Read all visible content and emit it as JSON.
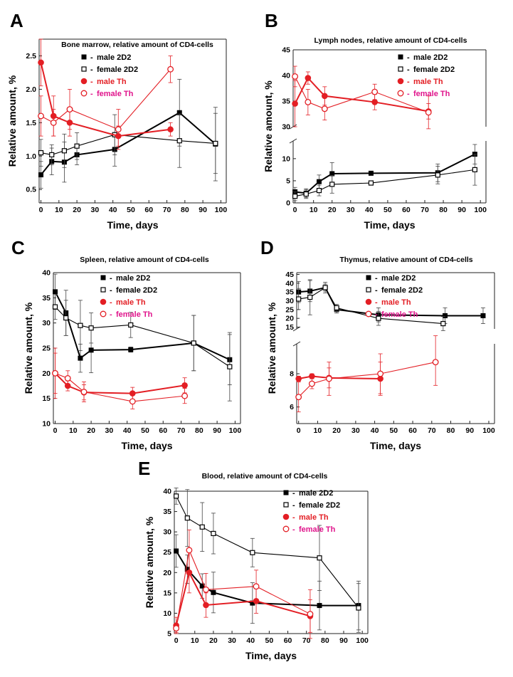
{
  "figure": {
    "colors": {
      "male_2D2": "#000000",
      "female_2D2": "#000000",
      "male_Th": "#e31e24",
      "female_Th": "#e31e24",
      "female_Th_text": "#e0158c",
      "axis": "#222222"
    }
  },
  "chart_data": [
    {
      "panel": "A",
      "type": "line",
      "title": "Bone marrow, relative amount of CD4-cells",
      "xlabel": "Time, days",
      "ylabel": "Relative amount, %",
      "xlim": [
        -1,
        103
      ],
      "ylim": [
        0.3,
        2.75
      ],
      "xticks": [
        0,
        10,
        20,
        30,
        40,
        50,
        60,
        70,
        80,
        90,
        100
      ],
      "yticks": [
        0.5,
        1.0,
        1.5,
        2.0,
        2.5
      ],
      "ytick_labels": [
        "0.5",
        "1.0",
        "1.5",
        "2.0",
        "2.5"
      ],
      "legend_position": "top-right",
      "series": [
        {
          "name": "male 2D2",
          "marker": "filled-square",
          "color": "#000000",
          "points": [
            [
              0,
              0.72,
              0.2
            ],
            [
              6,
              0.92,
              0.2
            ],
            [
              13,
              0.91,
              0.3
            ],
            [
              20,
              1.02,
              0.15
            ],
            [
              41,
              1.1,
              0.25
            ],
            [
              77,
              1.65,
              0.5
            ],
            [
              97,
              1.18,
              0.55
            ]
          ]
        },
        {
          "name": "female 2D2",
          "marker": "open-square",
          "color": "#000000",
          "points": [
            [
              0,
              1.05,
              0.2
            ],
            [
              6,
              1.02,
              0.15
            ],
            [
              13,
              1.08,
              0.25
            ],
            [
              20,
              1.15,
              0.2
            ],
            [
              41,
              1.32,
              0.3
            ],
            [
              77,
              1.23,
              0.4
            ],
            [
              97,
              1.19,
              0.45
            ]
          ]
        },
        {
          "name": "male Th",
          "marker": "filled-circle",
          "color": "#e31e24",
          "points": [
            [
              0,
              2.4,
              0.35
            ],
            [
              7,
              1.6,
              0.3
            ],
            [
              16,
              1.5,
              0.2
            ],
            [
              43,
              1.3,
              0.15
            ],
            [
              72,
              1.4,
              0.1
            ]
          ]
        },
        {
          "name": "female Th",
          "marker": "open-circle",
          "color": "#e31e24",
          "points": [
            [
              0,
              1.6,
              0.3
            ],
            [
              7,
              1.5,
              0.2
            ],
            [
              16,
              1.7,
              0.3
            ],
            [
              43,
              1.4,
              0.3
            ],
            [
              72,
              2.3,
              0.2
            ]
          ]
        }
      ]
    },
    {
      "panel": "B",
      "type": "line",
      "title": "Lymph nodes, relative amount of CD4-cells",
      "xlabel": "Time, days",
      "ylabel": "Relative amount, %",
      "xlim": [
        -1,
        103
      ],
      "broken_axis": {
        "lower": [
          0,
          14
        ],
        "upper": [
          30,
          45
        ]
      },
      "xticks": [
        0,
        10,
        20,
        30,
        40,
        50,
        60,
        70,
        80,
        90,
        100
      ],
      "yticks_lower": [
        0,
        5,
        10
      ],
      "yticks_upper": [
        30,
        35,
        40,
        45
      ],
      "legend_position": "top-right",
      "series": [
        {
          "name": "male 2D2",
          "marker": "filled-square",
          "color": "#000000",
          "points": [
            [
              0,
              2.5,
              1.0
            ],
            [
              6,
              2.2,
              1.0
            ],
            [
              13,
              4.8,
              1.5
            ],
            [
              20,
              6.6,
              2.5
            ],
            [
              41,
              6.7,
              0.4
            ],
            [
              77,
              6.8,
              2.0
            ],
            [
              97,
              11.0,
              2.2
            ]
          ]
        },
        {
          "name": "female 2D2",
          "marker": "open-square",
          "color": "#000000",
          "points": [
            [
              0,
              1.5,
              1.0
            ],
            [
              6,
              2.0,
              1.0
            ],
            [
              13,
              2.8,
              1.2
            ],
            [
              20,
              4.2,
              2.0
            ],
            [
              41,
              4.5,
              0.5
            ],
            [
              77,
              6.3,
              2.0
            ],
            [
              97,
              7.5,
              3.5
            ]
          ]
        },
        {
          "name": "male Th",
          "marker": "filled-circle",
          "color": "#e31e24",
          "points": [
            [
              0,
              34.5,
              4.5
            ],
            [
              7,
              39.5,
              1.2
            ],
            [
              16,
              36.0,
              1.8
            ],
            [
              43,
              34.8,
              1.5
            ],
            [
              72,
              33.0,
              1.5
            ]
          ]
        },
        {
          "name": "female Th",
          "marker": "open-circle",
          "color": "#e31e24",
          "points": [
            [
              0,
              39.8,
              2.0
            ],
            [
              7,
              34.8,
              2.5
            ],
            [
              16,
              33.5,
              2.2
            ],
            [
              43,
              36.8,
              1.5
            ],
            [
              72,
              32.8,
              3.2
            ]
          ]
        }
      ]
    },
    {
      "panel": "C",
      "type": "line",
      "title": "Spleen, relative amount of CD4-cells",
      "xlabel": "Time, days",
      "ylabel": "Relative amount, %",
      "xlim": [
        -1,
        103
      ],
      "ylim": [
        10,
        40
      ],
      "xticks": [
        0,
        10,
        20,
        30,
        40,
        50,
        60,
        70,
        80,
        90,
        100
      ],
      "yticks": [
        10,
        15,
        20,
        25,
        30,
        35,
        40
      ],
      "ytick_labels": [
        "10",
        "15",
        "20",
        "25",
        "30",
        "35",
        "40"
      ],
      "legend_position": "top-right",
      "series": [
        {
          "name": "male 2D2",
          "marker": "filled-square",
          "color": "#000000",
          "points": [
            [
              0,
              36.2,
              3.5
            ],
            [
              6,
              32.0,
              4.5
            ],
            [
              14,
              23.0,
              2.8
            ],
            [
              20,
              24.6,
              4.5
            ],
            [
              42,
              24.7,
              0.5
            ],
            [
              77,
              26.0,
              5.5
            ],
            [
              97,
              22.7,
              5.0
            ]
          ]
        },
        {
          "name": "female 2D2",
          "marker": "open-square",
          "color": "#000000",
          "points": [
            [
              0,
              33.2,
              2.5
            ],
            [
              6,
              31.0,
              3.5
            ],
            [
              14,
              29.5,
              5.0
            ],
            [
              20,
              29.0,
              3.0
            ],
            [
              42,
              29.6,
              2.5
            ],
            [
              77,
              26.0,
              5.5
            ],
            [
              97,
              21.3,
              6.8
            ]
          ]
        },
        {
          "name": "male Th",
          "marker": "filled-circle",
          "color": "#e31e24",
          "points": [
            [
              0,
              20.0,
              5.0
            ],
            [
              7,
              17.5,
              1.0
            ],
            [
              16,
              16.2,
              1.5
            ],
            [
              43,
              16.0,
              1.2
            ],
            [
              72,
              17.6,
              1.5
            ]
          ]
        },
        {
          "name": "female Th",
          "marker": "open-circle",
          "color": "#e31e24",
          "points": [
            [
              0,
              20.0,
              4.0
            ],
            [
              7,
              19.0,
              1.5
            ],
            [
              16,
              16.3,
              2.0
            ],
            [
              43,
              14.4,
              1.5
            ],
            [
              72,
              15.5,
              1.5
            ]
          ]
        }
      ]
    },
    {
      "panel": "D",
      "type": "line",
      "title": "Thymus, relative amount of CD4-cells",
      "xlabel": "Time, days",
      "ylabel": "Relative amount, %",
      "xlim": [
        -1,
        103
      ],
      "broken_axis": {
        "lower": [
          5,
          9.8
        ],
        "upper": [
          14,
          46
        ]
      },
      "xticks": [
        0,
        10,
        20,
        30,
        40,
        50,
        60,
        70,
        80,
        90,
        100
      ],
      "yticks_lower": [
        6,
        8
      ],
      "yticks_upper": [
        15,
        20,
        25,
        30,
        35,
        40,
        45
      ],
      "legend_position": "top-right",
      "series": [
        {
          "name": "male 2D2",
          "marker": "filled-square",
          "color": "#000000",
          "points": [
            [
              0,
              35.0,
              6.0
            ],
            [
              6,
              35.5,
              6.0
            ],
            [
              14,
              37.5,
              2.0
            ],
            [
              20,
              25.0,
              2.0
            ],
            [
              42,
              22.0,
              4.0
            ],
            [
              77,
              21.5,
              4.5
            ],
            [
              97,
              21.5,
              4.5
            ]
          ]
        },
        {
          "name": "female 2D2",
          "marker": "open-square",
          "color": "#000000",
          "points": [
            [
              0,
              31.0,
              6.0
            ],
            [
              6,
              32.0,
              10.0
            ],
            [
              14,
              37.5,
              3.0
            ],
            [
              20,
              26.0,
              2.0
            ],
            [
              42,
              20.0,
              4.0
            ],
            [
              76,
              17.0,
              4.0
            ]
          ]
        },
        {
          "name": "male Th",
          "marker": "filled-circle",
          "color": "#e31e24",
          "points": [
            [
              0,
              7.7,
              0.15
            ],
            [
              7,
              7.85,
              0.15
            ],
            [
              16,
              7.75,
              0.6
            ],
            [
              43,
              7.7,
              1.0
            ]
          ]
        },
        {
          "name": "female Th",
          "marker": "open-circle",
          "color": "#e31e24",
          "points": [
            [
              0,
              6.6,
              0.9
            ],
            [
              7,
              7.4,
              0.3
            ],
            [
              16,
              7.7,
              1.0
            ],
            [
              43,
              8.0,
              1.2
            ],
            [
              72,
              8.7,
              1.4
            ]
          ]
        }
      ]
    },
    {
      "panel": "E",
      "type": "line",
      "title": "Blood, relative amount of CD4-cells",
      "xlabel": "Time, days",
      "ylabel": "Relative amount, %",
      "xlim": [
        -1,
        103
      ],
      "ylim": [
        5,
        40
      ],
      "xticks": [
        0,
        10,
        20,
        30,
        40,
        50,
        60,
        70,
        80,
        90,
        100
      ],
      "yticks": [
        5,
        10,
        15,
        20,
        25,
        30,
        35,
        40
      ],
      "ytick_labels": [
        "5",
        "10",
        "15",
        "20",
        "25",
        "30",
        "35",
        "40"
      ],
      "legend_position": "top-right",
      "series": [
        {
          "name": "male 2D2",
          "marker": "filled-square",
          "color": "#000000",
          "points": [
            [
              0,
              25.3,
              4.0
            ],
            [
              6,
              20.8,
              3.5
            ],
            [
              14,
              16.7,
              3.0
            ],
            [
              20,
              15.1,
              5.0
            ],
            [
              41,
              12.5,
              5.0
            ],
            [
              77,
              11.9,
              6.0
            ],
            [
              98,
              11.9,
              6.0
            ]
          ]
        },
        {
          "name": "female 2D2",
          "marker": "open-square",
          "color": "#000000",
          "points": [
            [
              0,
              38.8,
              2.0
            ],
            [
              6,
              33.4,
              7.0
            ],
            [
              14,
              31.2,
              6.0
            ],
            [
              20,
              29.6,
              5.0
            ],
            [
              41,
              24.9,
              3.5
            ],
            [
              77,
              23.6,
              8.0
            ],
            [
              98,
              11.3,
              6.0
            ]
          ]
        },
        {
          "name": "male Th",
          "marker": "filled-circle",
          "color": "#e31e24",
          "points": [
            [
              0,
              7.0,
              2.0
            ],
            [
              7,
              20.0,
              5.0
            ],
            [
              16,
              12.0,
              3.0
            ],
            [
              43,
              13.0,
              3.0
            ],
            [
              72,
              9.3,
              4.0
            ]
          ]
        },
        {
          "name": "female Th",
          "marker": "open-circle",
          "color": "#e31e24",
          "points": [
            [
              0,
              6.3,
              1.0
            ],
            [
              7,
              25.5,
              5.0
            ],
            [
              16,
              15.8,
              4.0
            ],
            [
              43,
              16.6,
              4.0
            ],
            [
              72,
              9.8,
              6.0
            ]
          ]
        }
      ]
    }
  ]
}
